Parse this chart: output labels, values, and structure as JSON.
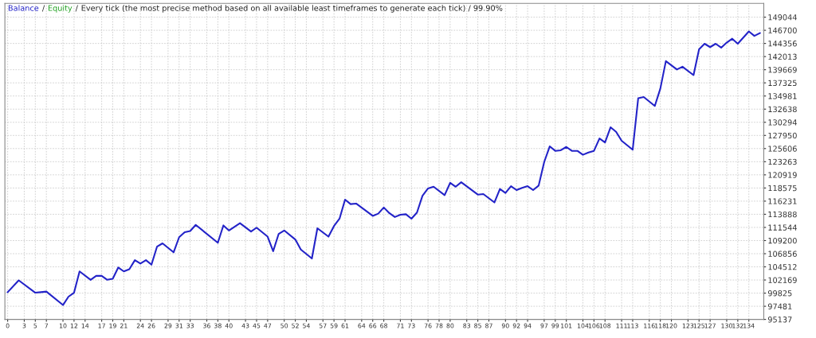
{
  "chart_data": {
    "type": "line",
    "title": "Every tick (the most precise method based on all available least timeframes to generate each tick) / 99.90%",
    "annotations": [
      "/",
      "/"
    ],
    "x": [
      0,
      2,
      5,
      6,
      7,
      10,
      11,
      12,
      13,
      15,
      16,
      17,
      18,
      19,
      20,
      21,
      22,
      23,
      24,
      25,
      26,
      27,
      28,
      30,
      31,
      32,
      33,
      34,
      38,
      39,
      40,
      42,
      44,
      45,
      47,
      48,
      49,
      50,
      52,
      53,
      55,
      56,
      58,
      59,
      60,
      61,
      62,
      63,
      66,
      67,
      68,
      69,
      70,
      71,
      72,
      73,
      74,
      75,
      76,
      77,
      79,
      80,
      81,
      82,
      85,
      86,
      88,
      89,
      90,
      91,
      92,
      93,
      94,
      95,
      96,
      97,
      98,
      99,
      100,
      101,
      102,
      103,
      104,
      105,
      106,
      107,
      108,
      109,
      110,
      111,
      113,
      114,
      115,
      117,
      118,
      119,
      121,
      122,
      124,
      125,
      126,
      127,
      128,
      129,
      130,
      131,
      132,
      134,
      135,
      136
    ],
    "series": [
      {
        "name": "Balance",
        "color": "#2323c8",
        "values": [
          100000,
          102100,
          99900,
          100000,
          100100,
          97700,
          99200,
          99900,
          103700,
          102200,
          102900,
          102900,
          102200,
          102400,
          104400,
          103700,
          104100,
          105700,
          105100,
          105700,
          104900,
          108100,
          108700,
          107100,
          109800,
          110700,
          110900,
          112000,
          108800,
          111900,
          111000,
          112300,
          110800,
          111500,
          109900,
          107300,
          110400,
          111000,
          109400,
          107600,
          106000,
          111400,
          109900,
          111800,
          113100,
          116500,
          115700,
          115800,
          113600,
          114000,
          115100,
          114100,
          113400,
          113800,
          113900,
          113100,
          114200,
          117200,
          118500,
          118800,
          117300,
          119500,
          118800,
          119600,
          117400,
          117500,
          116000,
          118400,
          117700,
          118900,
          118200,
          118600,
          118900,
          118200,
          119000,
          123200,
          126000,
          125200,
          125300,
          125900,
          125200,
          125200,
          124500,
          124900,
          125200,
          127400,
          126700,
          129400,
          128600,
          127000,
          125400,
          134600,
          134800,
          133200,
          136300,
          141200,
          139700,
          140200,
          138700,
          143300,
          144300,
          143700,
          144300,
          143600,
          144500,
          145200,
          144300,
          146500,
          145700,
          146200
        ]
      },
      {
        "name": "Equity",
        "color": "#1fa01f",
        "values": [
          null,
          null,
          null,
          null,
          null,
          null,
          null,
          null,
          null,
          null,
          null,
          null,
          null,
          null,
          null,
          null,
          null,
          null,
          null,
          null,
          null,
          null,
          null,
          null,
          null,
          null,
          null,
          null,
          null,
          null,
          null,
          null,
          null,
          null,
          null,
          null,
          null,
          null,
          null,
          null,
          null,
          null,
          null,
          null,
          null,
          null,
          null,
          null,
          null,
          null,
          null,
          null,
          null,
          null,
          null,
          null,
          null,
          null,
          null,
          null,
          null,
          null,
          null,
          null,
          null,
          null,
          null,
          null,
          null,
          null,
          null,
          null,
          null,
          null,
          null,
          null,
          null,
          null,
          null,
          null,
          null,
          null,
          null,
          null,
          null,
          null,
          null,
          null,
          null,
          null,
          null,
          null,
          null,
          null,
          null,
          null,
          null,
          null,
          null,
          null,
          null,
          null,
          null,
          null,
          null,
          null,
          null,
          null,
          null,
          null
        ]
      }
    ],
    "xlim": [
      -0.5,
      136.7
    ],
    "xticks": [
      0,
      3,
      5,
      7,
      10,
      12,
      14,
      17,
      19,
      21,
      24,
      26,
      29,
      31,
      33,
      36,
      38,
      40,
      43,
      45,
      47,
      50,
      52,
      54,
      57,
      59,
      61,
      64,
      66,
      68,
      71,
      73,
      76,
      78,
      80,
      83,
      85,
      87,
      90,
      92,
      94,
      97,
      99,
      101,
      104,
      106,
      108,
      111,
      113,
      116,
      118,
      120,
      123,
      125,
      127,
      130,
      132,
      134
    ],
    "ylim": [
      95137,
      151500
    ],
    "yticks": [
      95137,
      97481,
      99825,
      102169,
      104512,
      106856,
      109200,
      111544,
      113888,
      116231,
      118575,
      120919,
      123263,
      125606,
      127950,
      130294,
      132638,
      134981,
      137325,
      139669,
      142013,
      144356,
      146700,
      149044
    ],
    "grid": true,
    "legend": "top left"
  }
}
